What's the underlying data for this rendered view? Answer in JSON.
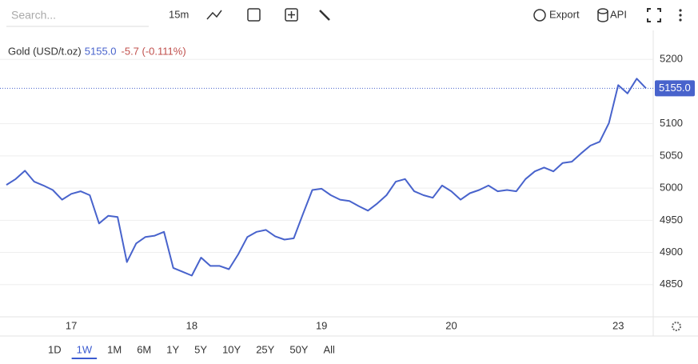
{
  "ui": {
    "search_placeholder": "Search...",
    "interval": "15m",
    "export": "Export",
    "api": "API",
    "ranges": [
      "1D",
      "1W",
      "1M",
      "6M",
      "1Y",
      "5Y",
      "10Y",
      "25Y",
      "50Y",
      "All"
    ],
    "active_range": "1W"
  },
  "chart_data": {
    "type": "line",
    "legend": {
      "name": "Gold (USD/t.oz)",
      "last": "5155.0",
      "change": "-5.7 (-0.111%)",
      "change_color": "#c0504d"
    },
    "categories": [
      null,
      null,
      null,
      null,
      null,
      null,
      null,
      "17",
      null,
      null,
      null,
      null,
      null,
      null,
      null,
      null,
      null,
      null,
      null,
      null,
      "18",
      null,
      null,
      null,
      null,
      null,
      null,
      null,
      null,
      null,
      null,
      null,
      null,
      null,
      "19",
      null,
      null,
      null,
      null,
      null,
      null,
      null,
      null,
      null,
      null,
      null,
      null,
      null,
      "20",
      null,
      null,
      null,
      null,
      null,
      null,
      null,
      null,
      null,
      null,
      null,
      null,
      null,
      null,
      null,
      null,
      null,
      "23",
      null,
      null,
      null
    ],
    "series": [
      {
        "name": "Gold (USD/t.oz)",
        "color": "#4863cc",
        "values": [
          5005,
          5014,
          5027,
          5010,
          5004,
          4997,
          4982,
          4991,
          4995,
          4989,
          4945,
          4957,
          4955,
          4885,
          4914,
          4924,
          4926,
          4932,
          4876,
          4870,
          4864,
          4892,
          4879,
          4879,
          4874,
          4897,
          4924,
          4932,
          4935,
          4925,
          4920,
          4922,
          4960,
          4997,
          4999,
          4989,
          4982,
          4980,
          4972,
          4965,
          4976,
          4989,
          5010,
          5014,
          4995,
          4989,
          4985,
          5004,
          4995,
          4982,
          4992,
          4997,
          5004,
          4995,
          4997,
          4995,
          5014,
          5026,
          5032,
          5026,
          5039,
          5041,
          5054,
          5066,
          5072,
          5101,
          5160,
          5147,
          5170,
          5155
        ]
      }
    ],
    "ylim": [
      4800,
      5245
    ],
    "yticks": [
      4850,
      4900,
      4950,
      5000,
      5050,
      5100,
      5200
    ],
    "price_line": {
      "value": 5155,
      "label": "5155.0"
    },
    "grid": true
  }
}
